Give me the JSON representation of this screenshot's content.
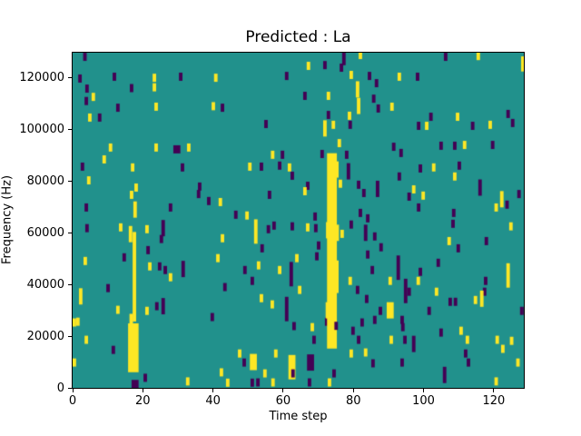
{
  "chart_data": {
    "type": "heatmap",
    "title": "Predicted : La",
    "xlabel": "Time step",
    "ylabel": "Frequency (Hz)",
    "x_axis": {
      "min": 0,
      "max": 128.5,
      "tick_values": [
        0,
        20,
        40,
        60,
        80,
        100,
        120
      ],
      "tick_labels": [
        "0",
        "20",
        "40",
        "60",
        "80",
        "100",
        "120"
      ]
    },
    "y_axis": {
      "min": 0,
      "max": 129700,
      "tick_values": [
        0,
        20000,
        40000,
        60000,
        80000,
        100000,
        120000
      ],
      "tick_labels": [
        "0",
        "20000",
        "40000",
        "60000",
        "80000",
        "100000",
        "120000"
      ]
    },
    "grid": false,
    "legend": "none",
    "colors": {
      "background_mid": "#21918c",
      "low": "#440154",
      "high": "#fde725"
    },
    "cell_time": 1,
    "cell_freq": 3150,
    "marks_format": "[time_step, frequency_hz, value(0=low/purple,1=high/yellow), height_cells(optional), width_cells(optional)]",
    "marks": [
      [
        3,
        128100,
        0
      ],
      [
        1.6,
        119700,
        0
      ],
      [
        11.4,
        120400,
        0
      ],
      [
        22.8,
        120000,
        1
      ],
      [
        30.3,
        120400,
        0
      ],
      [
        40.3,
        120000,
        1
      ],
      [
        3.6,
        115800,
        0
      ],
      [
        16.3,
        116000,
        0
      ],
      [
        22.8,
        116300,
        1
      ],
      [
        5.4,
        112600,
        1
      ],
      [
        3.4,
        111000,
        0
      ],
      [
        12.4,
        108400,
        0
      ],
      [
        23.3,
        108800,
        1
      ],
      [
        39.6,
        109000,
        1
      ],
      [
        42.2,
        108400,
        0
      ],
      [
        4.4,
        104600,
        1
      ],
      [
        7.2,
        104600,
        0
      ],
      [
        10.3,
        93000,
        1
      ],
      [
        8.5,
        88400,
        1
      ],
      [
        23.3,
        93000,
        1
      ],
      [
        28.7,
        92300,
        0,
        1,
        2
      ],
      [
        32.6,
        93000,
        1
      ],
      [
        2.3,
        85600,
        0
      ],
      [
        16.6,
        85300,
        1
      ],
      [
        30.8,
        85300,
        0
      ],
      [
        4.1,
        80300,
        1
      ],
      [
        17.6,
        77500,
        1
      ],
      [
        35.7,
        77900,
        0
      ],
      [
        16.3,
        74700,
        1
      ],
      [
        35.4,
        75000,
        0
      ],
      [
        3.4,
        69800,
        0
      ],
      [
        17.3,
        69000,
        1,
        2
      ],
      [
        27.4,
        69800,
        0
      ],
      [
        38.3,
        72300,
        0
      ],
      [
        41.6,
        71900,
        1
      ],
      [
        76.8,
        128000,
        0,
        2
      ],
      [
        81.5,
        128800,
        1
      ],
      [
        66.7,
        124600,
        1
      ],
      [
        71.4,
        124900,
        0
      ],
      [
        76.1,
        123900,
        0
      ],
      [
        60.5,
        120700,
        0
      ],
      [
        78.9,
        121100,
        1
      ],
      [
        84.1,
        120700,
        0
      ],
      [
        80.7,
        115500,
        1,
        2
      ],
      [
        86.1,
        117900,
        0
      ],
      [
        65.7,
        113000,
        0
      ],
      [
        72.4,
        113000,
        1
      ],
      [
        85.3,
        111900,
        0
      ],
      [
        81,
        109100,
        1,
        2
      ],
      [
        86.6,
        108100,
        0
      ],
      [
        72.4,
        105600,
        0
      ],
      [
        78.4,
        105300,
        1
      ],
      [
        54.6,
        102100,
        0
      ],
      [
        71.4,
        100400,
        1,
        2
      ],
      [
        73.8,
        101800,
        1
      ],
      [
        78.6,
        101800,
        0
      ],
      [
        75.5,
        94700,
        1
      ],
      [
        70.6,
        90500,
        0
      ],
      [
        56.5,
        90200,
        1
      ],
      [
        59.3,
        90200,
        0
      ],
      [
        77.6,
        90200,
        0
      ],
      [
        50,
        85600,
        1
      ],
      [
        53.3,
        85600,
        0
      ],
      [
        61.3,
        85300,
        1
      ],
      [
        58.5,
        86000,
        0
      ],
      [
        78.1,
        83800,
        0,
        2
      ],
      [
        62.1,
        82100,
        0
      ],
      [
        66.5,
        78200,
        0
      ],
      [
        81,
        78600,
        0
      ],
      [
        65.7,
        76100,
        1
      ],
      [
        55.6,
        74700,
        0
      ],
      [
        82.5,
        75400,
        0
      ],
      [
        86.4,
        77000,
        0,
        2
      ],
      [
        46,
        67000,
        0
      ],
      [
        49.2,
        66700,
        1
      ],
      [
        68.6,
        66300,
        0
      ],
      [
        81.5,
        67700,
        0
      ],
      [
        83.6,
        65600,
        0
      ],
      [
        75.8,
        79000,
        1
      ],
      [
        105.8,
        128100,
        0
      ],
      [
        115.1,
        128400,
        1
      ],
      [
        127.8,
        126700,
        1
      ],
      [
        127.8,
        124000,
        1
      ],
      [
        92.6,
        120400,
        1
      ],
      [
        97.8,
        120400,
        0
      ],
      [
        90.5,
        108800,
        1
      ],
      [
        101.6,
        104900,
        0
      ],
      [
        109.2,
        104900,
        1
      ],
      [
        98.1,
        101400,
        0
      ],
      [
        100.4,
        101400,
        1
      ],
      [
        113.5,
        101400,
        0
      ],
      [
        118.5,
        101800,
        1
      ],
      [
        123.6,
        106000,
        0
      ],
      [
        124.9,
        102500,
        0
      ],
      [
        91,
        93300,
        0
      ],
      [
        104.5,
        93700,
        0
      ],
      [
        108.4,
        93700,
        0
      ],
      [
        111.2,
        94000,
        1
      ],
      [
        119.2,
        94000,
        0
      ],
      [
        93.1,
        90900,
        0
      ],
      [
        98.6,
        84900,
        0
      ],
      [
        102.4,
        85300,
        1
      ],
      [
        109.7,
        86000,
        0
      ],
      [
        108.4,
        81800,
        1
      ],
      [
        92.6,
        81800,
        0
      ],
      [
        96.7,
        76800,
        1
      ],
      [
        95.4,
        74000,
        0
      ],
      [
        99.4,
        74400,
        1
      ],
      [
        115.6,
        77500,
        0,
        2
      ],
      [
        121.8,
        73000,
        1,
        2
      ],
      [
        126.7,
        75000,
        0
      ],
      [
        98.1,
        69800,
        0
      ],
      [
        120.2,
        69800,
        1
      ],
      [
        123.3,
        70900,
        0
      ],
      [
        108.1,
        67700,
        0
      ],
      [
        3.6,
        61800,
        0
      ],
      [
        13.2,
        62100,
        1
      ],
      [
        16,
        59500,
        1,
        2
      ],
      [
        20.7,
        61400,
        1
      ],
      [
        25.3,
        61800,
        0,
        2
      ],
      [
        24.8,
        57600,
        0
      ],
      [
        21,
        53300,
        0
      ],
      [
        14.2,
        50500,
        0
      ],
      [
        3.1,
        49100,
        1
      ],
      [
        21.5,
        47000,
        1
      ],
      [
        24.3,
        47000,
        0
      ],
      [
        25.9,
        45600,
        0
      ],
      [
        31,
        46000,
        0,
        2
      ],
      [
        27.4,
        42800,
        1
      ],
      [
        9.6,
        38600,
        0
      ],
      [
        1.8,
        35400,
        1,
        2
      ],
      [
        12.4,
        30200,
        1
      ],
      [
        20.7,
        29800,
        1
      ],
      [
        23.5,
        31600,
        0
      ],
      [
        25.3,
        31600,
        0,
        2
      ],
      [
        1,
        25600,
        1
      ],
      [
        0,
        25300,
        1
      ],
      [
        3.4,
        18600,
        1
      ],
      [
        11.1,
        14700,
        0
      ],
      [
        0,
        9800,
        1
      ],
      [
        20.2,
        3900,
        0
      ],
      [
        16.8,
        1500,
        0,
        1,
        2
      ],
      [
        32.3,
        2500,
        1
      ],
      [
        41.9,
        6000,
        1
      ],
      [
        42.9,
        39000,
        0
      ],
      [
        40.9,
        50200,
        1
      ],
      [
        39.3,
        27400,
        0
      ],
      [
        42.2,
        57900,
        1
      ],
      [
        43.7,
        2000,
        1
      ],
      [
        17.1,
        43000,
        1,
        11
      ],
      [
        16.2,
        25500,
        1,
        2
      ],
      [
        15.8,
        15500,
        1,
        6,
        3
      ],
      [
        51.7,
        60500,
        1,
        3
      ],
      [
        55.3,
        61400,
        0
      ],
      [
        56.9,
        62800,
        0
      ],
      [
        62.1,
        62500,
        0
      ],
      [
        66.5,
        62100,
        1
      ],
      [
        68.8,
        61800,
        0
      ],
      [
        78.9,
        63200,
        0
      ],
      [
        76.3,
        59600,
        1
      ],
      [
        69.6,
        55100,
        0
      ],
      [
        53.5,
        54000,
        0
      ],
      [
        63.4,
        50200,
        1
      ],
      [
        69.1,
        50900,
        0
      ],
      [
        52.5,
        47400,
        1
      ],
      [
        48.6,
        45600,
        0
      ],
      [
        58.5,
        45600,
        1
      ],
      [
        61.8,
        44000,
        0,
        3
      ],
      [
        50.7,
        41400,
        0
      ],
      [
        78.6,
        41400,
        1
      ],
      [
        80.7,
        37900,
        0
      ],
      [
        64.2,
        37900,
        1
      ],
      [
        60.5,
        30500,
        0,
        3
      ],
      [
        56.4,
        32300,
        1
      ],
      [
        53.3,
        34700,
        1
      ],
      [
        71.9,
        25600,
        0
      ],
      [
        62.6,
        23900,
        0
      ],
      [
        67.8,
        23500,
        1
      ],
      [
        68.3,
        18600,
        0
      ],
      [
        57.4,
        13300,
        1
      ],
      [
        47.1,
        13300,
        1
      ],
      [
        48.4,
        9800,
        0
      ],
      [
        50.5,
        10000,
        1,
        2,
        2
      ],
      [
        61.5,
        8000,
        1,
        3,
        2
      ],
      [
        66.8,
        9800,
        0,
        2,
        2
      ],
      [
        54.3,
        5600,
        1
      ],
      [
        56.6,
        2100,
        1
      ],
      [
        52.3,
        2100,
        0
      ],
      [
        62.3,
        5600,
        0
      ],
      [
        67,
        2100,
        0
      ],
      [
        72.7,
        2100,
        1
      ],
      [
        74,
        5600,
        0
      ],
      [
        79.4,
        22100,
        0
      ],
      [
        81,
        18600,
        0
      ],
      [
        78.9,
        13300,
        1
      ],
      [
        83,
        60000,
        0,
        2
      ],
      [
        85.6,
        58600,
        0
      ],
      [
        83.6,
        51600,
        0
      ],
      [
        84.9,
        45600,
        0
      ],
      [
        83.3,
        34400,
        0
      ],
      [
        85.6,
        26300,
        0
      ],
      [
        82,
        25300,
        0
      ],
      [
        83,
        13700,
        1
      ],
      [
        85.1,
        9500,
        0
      ],
      [
        50.7,
        2000,
        0
      ],
      [
        72.5,
        53000,
        1,
        24,
        2.8
      ],
      [
        72.2,
        61000,
        1,
        2
      ],
      [
        74.8,
        84500,
        1,
        2
      ],
      [
        74.9,
        60000,
        1,
        2
      ],
      [
        74.8,
        43000,
        1,
        4
      ],
      [
        72.1,
        30000,
        1,
        2
      ],
      [
        74.6,
        24000,
        0
      ],
      [
        107.9,
        63500,
        0
      ],
      [
        124.4,
        62500,
        1
      ],
      [
        106.8,
        56800,
        1
      ],
      [
        117.4,
        56800,
        0
      ],
      [
        109.4,
        54000,
        0
      ],
      [
        87.4,
        54400,
        0
      ],
      [
        92.3,
        46500,
        0,
        3
      ],
      [
        103.7,
        48400,
        0
      ],
      [
        98.6,
        44900,
        0
      ],
      [
        98,
        41400,
        1
      ],
      [
        90,
        41400,
        1
      ],
      [
        94.4,
        37500,
        0,
        3
      ],
      [
        95.4,
        37200,
        0
      ],
      [
        103.2,
        37200,
        1
      ],
      [
        116.9,
        37200,
        0
      ],
      [
        123.6,
        43500,
        1,
        3
      ],
      [
        117.2,
        41400,
        0
      ],
      [
        114.3,
        34000,
        1
      ],
      [
        116.1,
        34500,
        1,
        2
      ],
      [
        107.1,
        33300,
        0
      ],
      [
        108.6,
        33300,
        0
      ],
      [
        89.5,
        30000,
        1,
        2,
        2
      ],
      [
        87.2,
        29800,
        0
      ],
      [
        101.1,
        29800,
        0
      ],
      [
        93.4,
        26300,
        0
      ],
      [
        127.5,
        29800,
        0
      ],
      [
        93.6,
        23500,
        0
      ],
      [
        94.2,
        18600,
        0
      ],
      [
        96.7,
        17000,
        0,
        2
      ],
      [
        90.3,
        18600,
        1
      ],
      [
        104.5,
        21400,
        0
      ],
      [
        110.2,
        22100,
        1
      ],
      [
        112,
        18600,
        1
      ],
      [
        111.5,
        13300,
        0
      ],
      [
        112.3,
        9800,
        0
      ],
      [
        120.5,
        18600,
        1
      ],
      [
        122.1,
        15100,
        1
      ],
      [
        124.6,
        18200,
        1
      ],
      [
        93.4,
        9800,
        0
      ],
      [
        105.5,
        5000,
        0,
        2
      ],
      [
        126.4,
        9800,
        1
      ],
      [
        120.2,
        2500,
        1
      ]
    ]
  }
}
